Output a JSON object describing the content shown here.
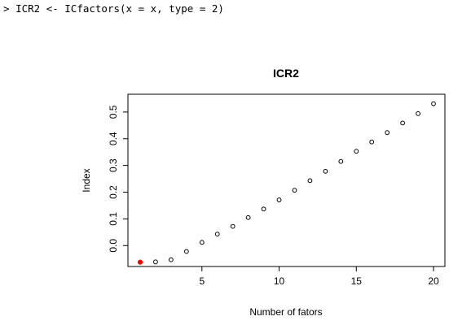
{
  "console": {
    "prompt": ">",
    "command": "ICR2 <- ICfactors(x = x, type = 2)"
  },
  "chart_data": {
    "type": "scatter",
    "title": "ICR2",
    "xlabel": "Number of fators",
    "ylabel": "Index",
    "xlim": [
      1,
      20
    ],
    "ylim": [
      -0.06,
      0.53
    ],
    "x_ticks": [
      5,
      10,
      15,
      20
    ],
    "y_ticks": [
      0.0,
      0.1,
      0.2,
      0.3,
      0.4,
      0.5
    ],
    "x_tick_labels": [
      "5",
      "10",
      "15",
      "20"
    ],
    "y_tick_labels": [
      "0.0",
      "0.1",
      "0.2",
      "0.3",
      "0.4",
      "0.5"
    ],
    "grid": false,
    "highlight_color": "#ff0000",
    "point_color": "#000000",
    "highlight_index": 0,
    "x": [
      1,
      2,
      3,
      4,
      5,
      6,
      7,
      8,
      9,
      10,
      11,
      12,
      13,
      14,
      15,
      16,
      17,
      18,
      19,
      20
    ],
    "y": [
      -0.062,
      -0.061,
      -0.053,
      -0.022,
      0.012,
      0.043,
      0.072,
      0.105,
      0.137,
      0.171,
      0.207,
      0.243,
      0.278,
      0.315,
      0.353,
      0.388,
      0.423,
      0.459,
      0.494,
      0.531
    ]
  }
}
